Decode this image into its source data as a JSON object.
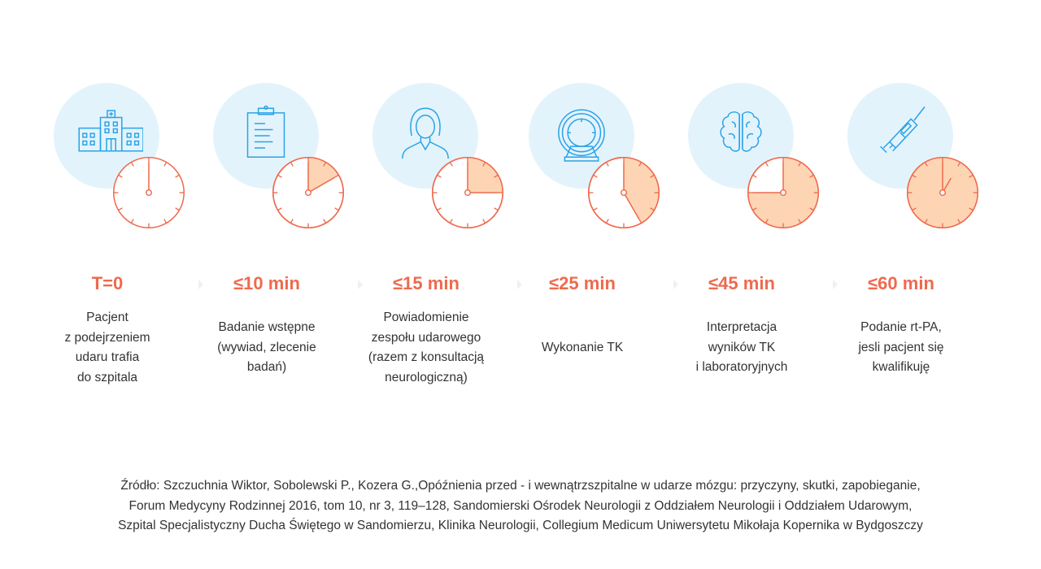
{
  "colors": {
    "accent": "#ee6a4d",
    "clock_fill": "#fdd5b4",
    "bubble": "#e3f3fc",
    "icon": "#2aa3e6"
  },
  "steps": [
    {
      "icon": "hospital-icon",
      "time": "T=0",
      "minutes": 0,
      "lines": [
        "Pacjent",
        "z podejrzeniem",
        "udaru trafia",
        "do szpitala"
      ]
    },
    {
      "icon": "clipboard-icon",
      "time": "≤10 min",
      "minutes": 10,
      "lines": [
        "Badanie wstępne",
        "(wywiad, zlecenie",
        "badań)"
      ]
    },
    {
      "icon": "doctor-icon",
      "time": "≤15 min",
      "minutes": 15,
      "lines": [
        "Powiadomienie",
        "zespołu udarowego",
        "(razem z konsultacją",
        "neurologiczną)"
      ]
    },
    {
      "icon": "ct-scanner-icon",
      "time": "≤25 min",
      "minutes": 25,
      "lines": [
        "Wykonanie TK"
      ]
    },
    {
      "icon": "brain-icon",
      "time": "≤45 min",
      "minutes": 45,
      "lines": [
        "Interpretacja",
        "wyników TK",
        "i laboratoryjnych"
      ]
    },
    {
      "icon": "syringe-icon",
      "time": "≤60 min",
      "minutes": 60,
      "lines": [
        "Podanie rt-PA,",
        "jesli pacjent się",
        "kwalifikuję"
      ]
    }
  ],
  "source": [
    "Źródło: Szczuchnia Wiktor, Sobolewski P., Kozera G.,Opóźnienia przed - i wewnątrzszpitalne w udarze mózgu: przyczyny, skutki, zapobieganie,",
    "Forum Medycyny Rodzinnej 2016, tom 10, nr 3, 119–128, Sandomierski Ośrodek Neurologii z Oddziałem Neurologii i Oddziałem Udarowym,",
    "Szpital Specjalistyczny Ducha Świętego w Sandomierzu, Klinika Neurologii, Collegium Medicum Uniwersytetu Mikołaja Kopernika w Bydgoszczy"
  ]
}
